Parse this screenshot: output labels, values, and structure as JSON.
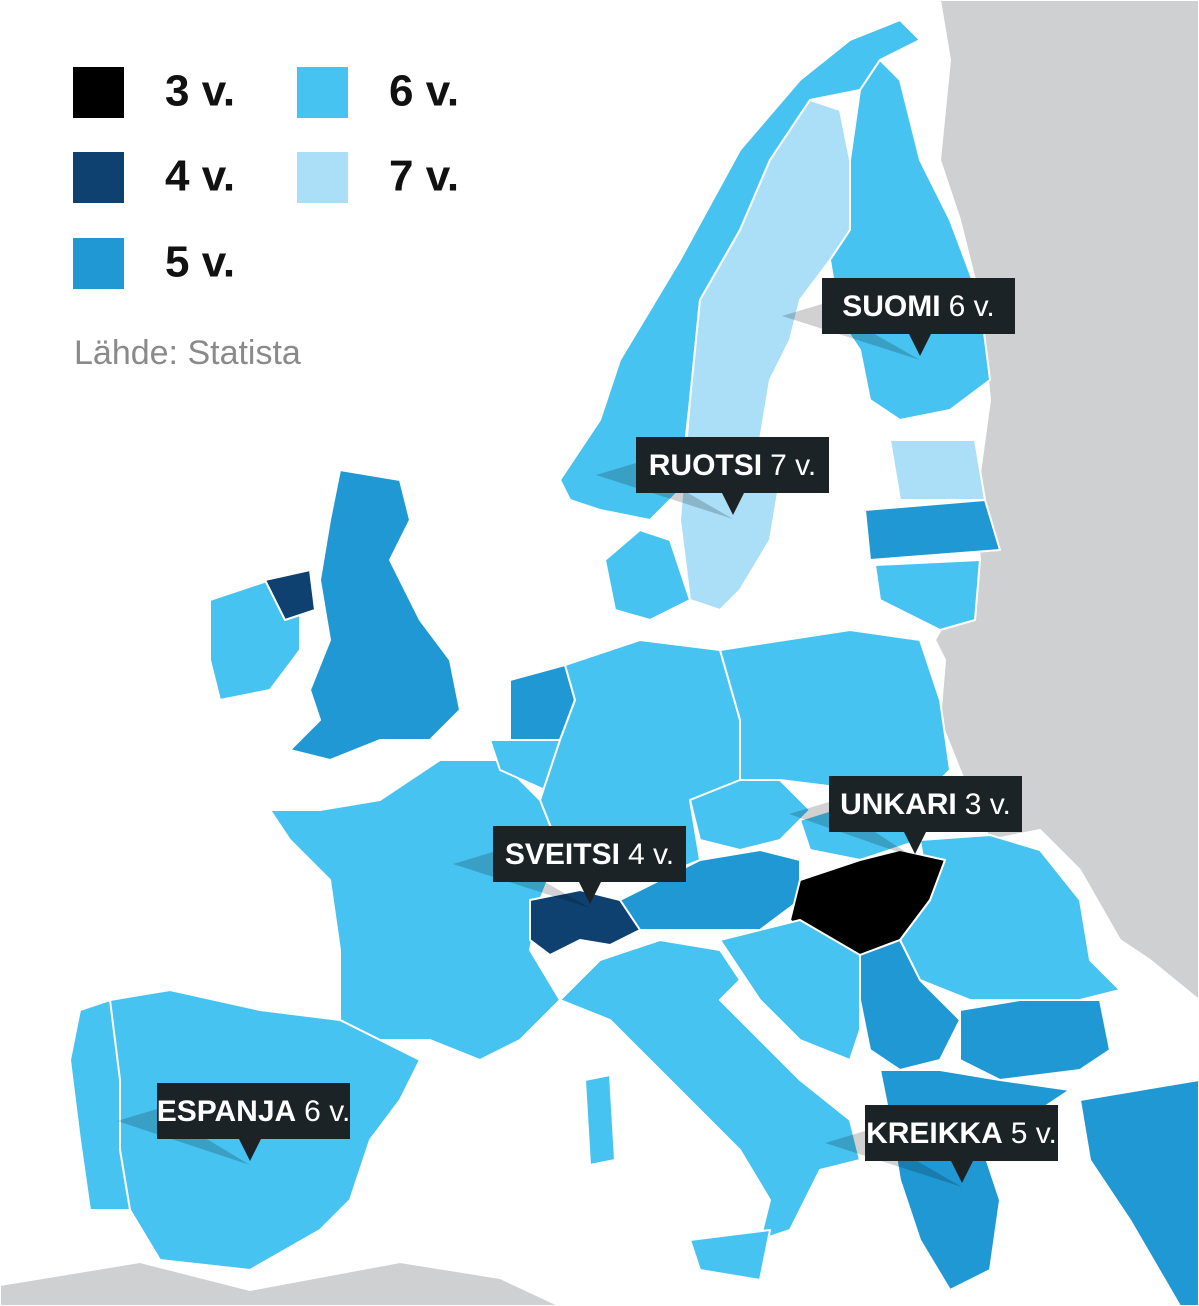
{
  "legend": {
    "items": [
      {
        "label": "3 v.",
        "color": "#000000"
      },
      {
        "label": "4 v.",
        "color": "#0e4170"
      },
      {
        "label": "5 v.",
        "color": "#1f98d4"
      },
      {
        "label": "6 v.",
        "color": "#47c3f1"
      },
      {
        "label": "7 v.",
        "color": "#aadff7"
      }
    ]
  },
  "source": "Lähde: Statista",
  "callouts": [
    {
      "name": "SUOMI",
      "value": "6 v."
    },
    {
      "name": "RUOTSI",
      "value": "7 v."
    },
    {
      "name": "UNKARI",
      "value": "3 v."
    },
    {
      "name": "SVEITSI",
      "value": "4 v."
    },
    {
      "name": "ESPANJA",
      "value": "6 v."
    },
    {
      "name": "KREIKKA",
      "value": "5 v."
    }
  ]
}
